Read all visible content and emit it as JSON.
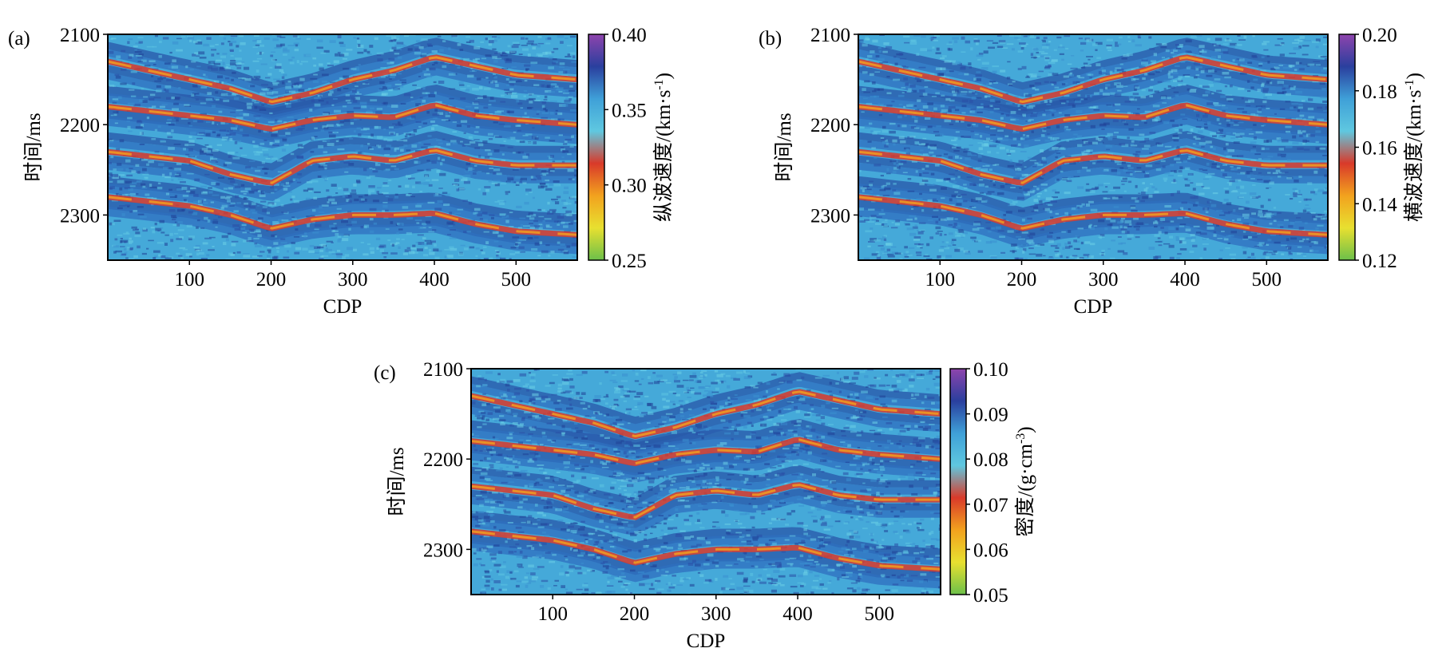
{
  "panels": [
    {
      "id": "a",
      "panel_label": "(a)",
      "xlabel": "CDP",
      "ylabel": "时间/ms",
      "colorbar_label": "纵波速度/(km·s",
      "colorbar_unit_sup": "-1",
      "colorbar_label_close": ")",
      "colorbar_ticks": [
        "0.40",
        "0.35",
        "0.30",
        "0.25"
      ]
    },
    {
      "id": "b",
      "panel_label": "(b)",
      "xlabel": "CDP",
      "ylabel": "时间/ms",
      "colorbar_label": "横波速度/(km·s",
      "colorbar_unit_sup": "-1",
      "colorbar_label_close": ")",
      "colorbar_ticks": [
        "0.20",
        "0.18",
        "0.16",
        "0.14",
        "0.12"
      ]
    },
    {
      "id": "c",
      "panel_label": "(c)",
      "xlabel": "CDP",
      "ylabel": "时间/ms",
      "colorbar_label": "密度/(g·cm",
      "colorbar_unit_sup": "-3",
      "colorbar_label_close": ")",
      "colorbar_ticks": [
        "0.10",
        "0.09",
        "0.08",
        "0.07",
        "0.06",
        "0.05"
      ]
    }
  ],
  "colorbar_colors": [
    "#8e44ad",
    "#2a3f9e",
    "#3fa0d8",
    "#5fc8e0",
    "#d93a2a",
    "#f2a21e",
    "#e8e030",
    "#6cc04a"
  ],
  "chart_data": [
    {
      "type": "heatmap",
      "panel": "a",
      "xlabel": "CDP",
      "ylabel": "时间/ms",
      "x_ticks": [
        100,
        200,
        300,
        400,
        500
      ],
      "y_ticks": [
        2100,
        2200,
        2300
      ],
      "xlim": [
        0,
        575
      ],
      "ylim": [
        2350,
        2100
      ],
      "colorbar": {
        "label": "纵波速度/(km·s-1)",
        "range": [
          0.25,
          0.4
        ],
        "ticks": [
          0.4,
          0.35,
          0.3,
          0.25
        ]
      },
      "horizons": [
        {
          "x": [
            0,
            50,
            100,
            150,
            200,
            250,
            300,
            350,
            400,
            450,
            500,
            575
          ],
          "y": [
            2130,
            2140,
            2150,
            2160,
            2175,
            2165,
            2150,
            2140,
            2125,
            2135,
            2145,
            2150
          ]
        },
        {
          "x": [
            0,
            50,
            100,
            150,
            200,
            250,
            300,
            350,
            400,
            450,
            500,
            575
          ],
          "y": [
            2180,
            2185,
            2190,
            2195,
            2205,
            2195,
            2190,
            2192,
            2178,
            2190,
            2195,
            2200
          ]
        },
        {
          "x": [
            0,
            50,
            100,
            150,
            200,
            250,
            300,
            350,
            400,
            450,
            500,
            575
          ],
          "y": [
            2230,
            2235,
            2240,
            2255,
            2265,
            2240,
            2235,
            2240,
            2228,
            2240,
            2245,
            2245
          ]
        },
        {
          "x": [
            0,
            50,
            100,
            150,
            200,
            250,
            300,
            350,
            400,
            450,
            500,
            575
          ],
          "y": [
            2280,
            2285,
            2290,
            2300,
            2315,
            2305,
            2300,
            2300,
            2298,
            2310,
            2318,
            2322
          ]
        }
      ]
    },
    {
      "type": "heatmap",
      "panel": "b",
      "xlabel": "CDP",
      "ylabel": "时间/ms",
      "x_ticks": [
        100,
        200,
        300,
        400,
        500
      ],
      "y_ticks": [
        2100,
        2200,
        2300
      ],
      "xlim": [
        0,
        575
      ],
      "ylim": [
        2350,
        2100
      ],
      "colorbar": {
        "label": "横波速度/(km·s-1)",
        "range": [
          0.12,
          0.2
        ],
        "ticks": [
          0.2,
          0.18,
          0.16,
          0.14,
          0.12
        ]
      },
      "horizons": [
        {
          "x": [
            0,
            50,
            100,
            150,
            200,
            250,
            300,
            350,
            400,
            450,
            500,
            575
          ],
          "y": [
            2130,
            2140,
            2150,
            2160,
            2175,
            2165,
            2150,
            2140,
            2125,
            2135,
            2145,
            2150
          ]
        },
        {
          "x": [
            0,
            50,
            100,
            150,
            200,
            250,
            300,
            350,
            400,
            450,
            500,
            575
          ],
          "y": [
            2180,
            2185,
            2190,
            2195,
            2205,
            2195,
            2190,
            2192,
            2178,
            2190,
            2195,
            2200
          ]
        },
        {
          "x": [
            0,
            50,
            100,
            150,
            200,
            250,
            300,
            350,
            400,
            450,
            500,
            575
          ],
          "y": [
            2230,
            2235,
            2240,
            2255,
            2265,
            2240,
            2235,
            2240,
            2228,
            2240,
            2245,
            2245
          ]
        },
        {
          "x": [
            0,
            50,
            100,
            150,
            200,
            250,
            300,
            350,
            400,
            450,
            500,
            575
          ],
          "y": [
            2280,
            2285,
            2290,
            2300,
            2315,
            2305,
            2300,
            2300,
            2298,
            2310,
            2318,
            2322
          ]
        }
      ]
    },
    {
      "type": "heatmap",
      "panel": "c",
      "xlabel": "CDP",
      "ylabel": "时间/ms",
      "x_ticks": [
        100,
        200,
        300,
        400,
        500
      ],
      "y_ticks": [
        2100,
        2200,
        2300
      ],
      "xlim": [
        0,
        575
      ],
      "ylim": [
        2350,
        2100
      ],
      "colorbar": {
        "label": "密度/(g·cm-3)",
        "range": [
          0.05,
          0.1
        ],
        "ticks": [
          0.1,
          0.09,
          0.08,
          0.07,
          0.06,
          0.05
        ]
      },
      "horizons": [
        {
          "x": [
            0,
            50,
            100,
            150,
            200,
            250,
            300,
            350,
            400,
            450,
            500,
            575
          ],
          "y": [
            2130,
            2140,
            2150,
            2160,
            2175,
            2165,
            2150,
            2140,
            2125,
            2135,
            2145,
            2150
          ]
        },
        {
          "x": [
            0,
            50,
            100,
            150,
            200,
            250,
            300,
            350,
            400,
            450,
            500,
            575
          ],
          "y": [
            2180,
            2185,
            2190,
            2195,
            2205,
            2195,
            2190,
            2192,
            2178,
            2190,
            2195,
            2200
          ]
        },
        {
          "x": [
            0,
            50,
            100,
            150,
            200,
            250,
            300,
            350,
            400,
            450,
            500,
            575
          ],
          "y": [
            2230,
            2235,
            2240,
            2255,
            2265,
            2240,
            2235,
            2240,
            2228,
            2240,
            2245,
            2245
          ]
        },
        {
          "x": [
            0,
            50,
            100,
            150,
            200,
            250,
            300,
            350,
            400,
            450,
            500,
            575
          ],
          "y": [
            2280,
            2285,
            2290,
            2300,
            2315,
            2305,
            2300,
            2300,
            2298,
            2310,
            2318,
            2322
          ]
        }
      ]
    }
  ]
}
